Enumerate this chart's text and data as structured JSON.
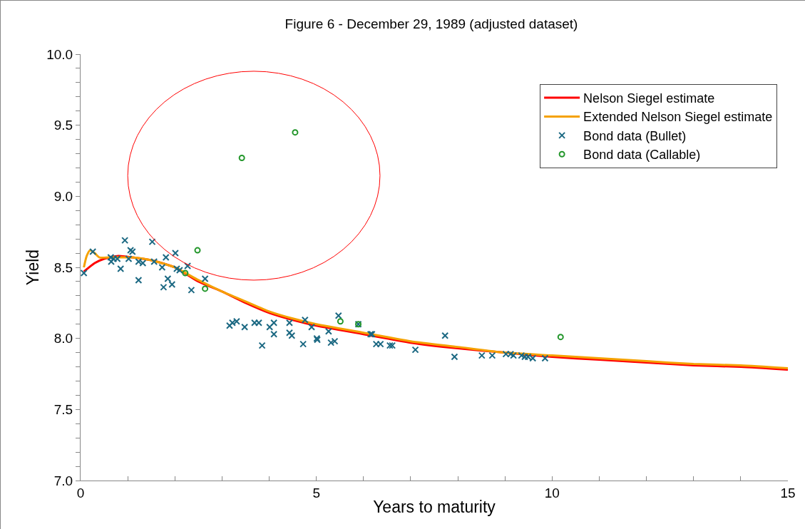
{
  "chart_data": {
    "type": "scatter",
    "title": "Figure 6 - December 29, 1989 (adjusted dataset)",
    "xlabel": "Years to maturity",
    "ylabel": "Yield",
    "xlim": [
      0,
      15
    ],
    "xticks": [
      0,
      {
        "value": 1,
        "label": null
      },
      {
        "value": 2,
        "label": null
      },
      {
        "value": 3,
        "label": null
      },
      {
        "value": 4,
        "label": null
      },
      5,
      {
        "value": 6,
        "label": null
      },
      {
        "value": 7,
        "label": null
      },
      {
        "value": 8,
        "label": null
      },
      {
        "value": 9,
        "label": null
      },
      10,
      {
        "value": 11,
        "label": null
      },
      {
        "value": 12,
        "label": null
      },
      {
        "value": 13,
        "label": null
      },
      {
        "value": 14,
        "label": null
      },
      15
    ],
    "ylim": [
      7,
      10
    ],
    "yticks": [
      {
        "value": 7,
        "label": "7.0"
      },
      {
        "value": 7.1,
        "label": null
      },
      {
        "value": 7.2,
        "label": null
      },
      {
        "value": 7.3,
        "label": null
      },
      {
        "value": 7.4,
        "label": null
      },
      7.5,
      {
        "value": 7.6,
        "label": null
      },
      {
        "value": 7.7,
        "label": null
      },
      {
        "value": 7.8,
        "label": null
      },
      {
        "value": 7.9,
        "label": null
      },
      {
        "value": 8,
        "label": "8.0"
      },
      {
        "value": 8.1,
        "label": null
      },
      {
        "value": 8.2,
        "label": null
      },
      {
        "value": 8.3,
        "label": null
      },
      {
        "value": 8.4,
        "label": null
      },
      8.5,
      {
        "value": 8.6,
        "label": null
      },
      {
        "value": 8.7,
        "label": null
      },
      {
        "value": 8.8,
        "label": null
      },
      {
        "value": 8.9,
        "label": null
      },
      {
        "value": 9,
        "label": "9.0"
      },
      {
        "value": 9.1,
        "label": null
      },
      {
        "value": 9.2,
        "label": null
      },
      {
        "value": 9.3,
        "label": null
      },
      {
        "value": 9.4,
        "label": null
      },
      9.5,
      {
        "value": 9.6,
        "label": null
      },
      {
        "value": 9.7,
        "label": null
      },
      {
        "value": 9.8,
        "label": null
      },
      {
        "value": 9.9,
        "label": null
      },
      {
        "value": 10,
        "label": "10.0"
      }
    ],
    "grid": false,
    "legend": "top right",
    "series": [
      {
        "name": "Nelson Siegel estimate",
        "type": "line",
        "marker": "none",
        "line_style": "solid",
        "color": "#ff0000",
        "x": [
          0.07,
          0.3,
          0.5,
          0.8,
          1.1,
          1.5,
          2,
          2.5,
          3,
          3.5,
          4,
          4.5,
          5,
          6,
          7,
          8,
          9,
          10,
          11,
          12,
          13,
          14,
          15
        ],
        "values": [
          8.47,
          8.53,
          8.56,
          8.58,
          8.57,
          8.55,
          8.5,
          8.4,
          8.33,
          8.25,
          8.18,
          8.13,
          8.09,
          8.03,
          7.97,
          7.93,
          7.9,
          7.87,
          7.85,
          7.83,
          7.81,
          7.8,
          7.78
        ]
      },
      {
        "name": "Extended Nelson Siegel estimate",
        "type": "line",
        "marker": "none",
        "line_style": "solid",
        "color": "#f5a100",
        "x": [
          0.07,
          0.13,
          0.2,
          0.3,
          0.4,
          0.6,
          0.8,
          1.1,
          1.5,
          2,
          2.5,
          3,
          3.5,
          4,
          4.5,
          5,
          6,
          7,
          8,
          9,
          10,
          11,
          12,
          13,
          14,
          15
        ],
        "values": [
          8.5,
          8.58,
          8.62,
          8.6,
          8.57,
          8.57,
          8.57,
          8.57,
          8.55,
          8.5,
          8.41,
          8.33,
          8.26,
          8.19,
          8.14,
          8.1,
          8.04,
          7.98,
          7.94,
          7.9,
          7.88,
          7.86,
          7.84,
          7.82,
          7.81,
          7.79
        ]
      },
      {
        "name": "Bond data (Bullet)",
        "marker": "cross",
        "color": "#1b6882",
        "x": [
          0.07,
          0.26,
          0.94,
          0.64,
          0.7,
          0.78,
          0.65,
          0.85,
          1.06,
          1.1,
          1.02,
          1.23,
          1.23,
          1.32,
          1.52,
          1.56,
          1.81,
          1.73,
          2.01,
          1.85,
          1.76,
          1.94,
          2.04,
          2.1,
          2.27,
          2.64,
          2.35,
          3.16,
          3.22,
          3.31,
          3.48,
          3.69,
          3.78,
          3.85,
          4.01,
          4.1,
          4.1,
          4.43,
          4.43,
          4.48,
          4.72,
          4.76,
          4.9,
          5.01,
          5.02,
          5.26,
          5.31,
          5.39,
          5.47,
          5.89,
          6.15,
          6.18,
          6.27,
          6.36,
          6.56,
          6.61,
          7.1,
          7.73,
          7.93,
          8.51,
          8.73,
          9.02,
          9.12,
          9.18,
          9.35,
          9.42,
          9.49,
          9.59,
          9.85
        ],
        "values": [
          8.46,
          8.61,
          8.69,
          8.57,
          8.56,
          8.56,
          8.54,
          8.49,
          8.62,
          8.61,
          8.56,
          8.41,
          8.54,
          8.53,
          8.68,
          8.54,
          8.57,
          8.5,
          8.6,
          8.42,
          8.36,
          8.38,
          8.49,
          8.48,
          8.51,
          8.42,
          8.34,
          8.09,
          8.11,
          8.12,
          8.08,
          8.11,
          8.11,
          7.95,
          8.08,
          8.11,
          8.03,
          8.11,
          8.04,
          8.02,
          7.96,
          8.13,
          8.08,
          8,
          7.99,
          8.05,
          7.97,
          7.98,
          8.16,
          8.1,
          8.03,
          8.03,
          7.96,
          7.96,
          7.95,
          7.95,
          7.92,
          8.02,
          7.87,
          7.88,
          7.88,
          7.89,
          7.89,
          7.88,
          7.88,
          7.87,
          7.87,
          7.86,
          7.86
        ]
      },
      {
        "name": "Bond data (Callable)",
        "marker": "circle",
        "color": "#22962a",
        "x": [
          2.48,
          2.22,
          2.64,
          3.42,
          4.55,
          5.51,
          5.89,
          10.18
        ],
        "values": [
          8.62,
          8.46,
          8.35,
          9.27,
          9.45,
          8.12,
          8.1,
          8.01
        ]
      }
    ]
  }
}
